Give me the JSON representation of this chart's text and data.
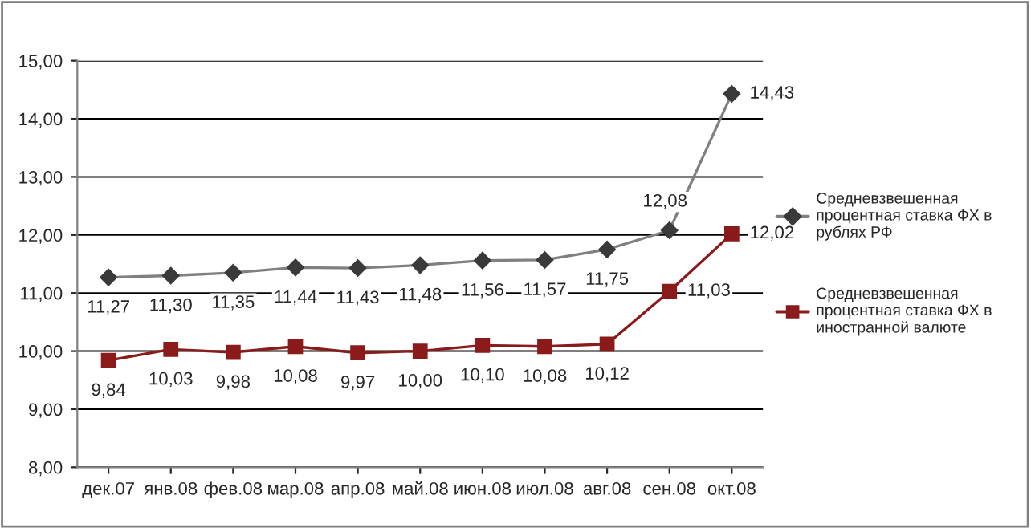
{
  "chart_data": {
    "type": "line",
    "categories": [
      "дек.07",
      "янв.08",
      "фев.08",
      "мар.08",
      "апр.08",
      "май.08",
      "июн.08",
      "июл.08",
      "авг.08",
      "сен.08",
      "окт.08"
    ],
    "series": [
      {
        "name": "Средневзвешенная процентная ставка ФХ в рублях РФ",
        "color": "#808080",
        "marker": "diamond",
        "values": [
          11.27,
          11.3,
          11.35,
          11.44,
          11.43,
          11.48,
          11.56,
          11.57,
          11.75,
          12.08,
          14.43
        ],
        "value_labels": [
          "11,27",
          "11,30",
          "11,35",
          "11,44",
          "11,43",
          "11,48",
          "11,56",
          "11,57",
          "11,75",
          "12,08",
          "14,43"
        ]
      },
      {
        "name": "Средневзвешенная процентная ставка ФХ в иностранной валюте",
        "color": "#8b1a1a",
        "marker": "square",
        "values": [
          9.84,
          10.03,
          9.98,
          10.08,
          9.97,
          10.0,
          10.1,
          10.08,
          10.12,
          11.03,
          12.02
        ],
        "value_labels": [
          "9,84",
          "10,03",
          "9,98",
          "10,08",
          "9,97",
          "10,00",
          "10,10",
          "10,08",
          "10,12",
          "11,03",
          "12,02"
        ]
      }
    ],
    "ylim": [
      8,
      15
    ],
    "yticks": [
      {
        "value": 8,
        "label": "8,00"
      },
      {
        "value": 9,
        "label": "9,00"
      },
      {
        "value": 10,
        "label": "10,00"
      },
      {
        "value": 11,
        "label": "11,00"
      },
      {
        "value": 12,
        "label": "12,00"
      },
      {
        "value": 13,
        "label": "13,00"
      },
      {
        "value": 14,
        "label": "14,00"
      },
      {
        "value": 15,
        "label": "15,00"
      }
    ],
    "grid": "y",
    "legend": "right",
    "line_style": "solid"
  }
}
